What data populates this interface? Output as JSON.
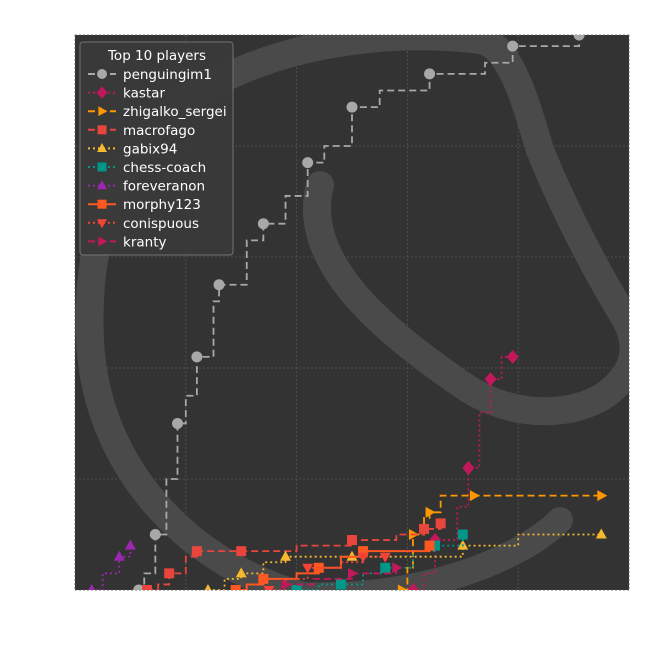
{
  "chart_data": {
    "type": "line",
    "x_axis": {
      "range": [
        0,
        100
      ],
      "ticks": [
        0,
        20,
        40,
        60,
        80,
        100
      ],
      "tick_labels_visible": false,
      "label": ""
    },
    "y_axis": {
      "range": [
        0,
        100
      ],
      "ticks": [
        0,
        20,
        40,
        60,
        80,
        100
      ],
      "tick_labels_visible": false,
      "label": ""
    },
    "grid": true,
    "background": "#333333",
    "watermark": "knight-icon",
    "legend": {
      "title": "Top 10 players",
      "placement": "top-left"
    },
    "series": [
      {
        "name": "penguingim1",
        "color": "#a8a8a8",
        "linestyle": "dashed",
        "marker": "circle",
        "points": [
          [
            11.5,
            0
          ],
          [
            12.5,
            3
          ],
          [
            14.5,
            10
          ],
          [
            16.5,
            20
          ],
          [
            18.5,
            30
          ],
          [
            20,
            35
          ],
          [
            22,
            42
          ],
          [
            25,
            52
          ],
          [
            26,
            55
          ],
          [
            31,
            63
          ],
          [
            34,
            66
          ],
          [
            38,
            71
          ],
          [
            42,
            77
          ],
          [
            45,
            80
          ],
          [
            50,
            87
          ],
          [
            55,
            90
          ],
          [
            64,
            93
          ],
          [
            74,
            95
          ],
          [
            79,
            98
          ],
          [
            90,
            98
          ],
          [
            91,
            100
          ]
        ]
      },
      {
        "name": "kastar",
        "color": "#c2185b",
        "linestyle": "dotted",
        "marker": "diamond",
        "points": [
          [
            61,
            0
          ],
          [
            63,
            3
          ],
          [
            65,
            9
          ],
          [
            69,
            15
          ],
          [
            71,
            22
          ],
          [
            73,
            32
          ],
          [
            75,
            38
          ],
          [
            77,
            42
          ],
          [
            79,
            42
          ]
        ]
      },
      {
        "name": "zhigalko_sergei",
        "color": "#ff9800",
        "linestyle": "dashed",
        "marker": "triangle-right",
        "points": [
          [
            59,
            0
          ],
          [
            60,
            4
          ],
          [
            61,
            10
          ],
          [
            63,
            13
          ],
          [
            64,
            14
          ],
          [
            66,
            17
          ],
          [
            72,
            17
          ],
          [
            82,
            17
          ],
          [
            95,
            17
          ]
        ]
      },
      {
        "name": "macrofago",
        "color": "#e8453c",
        "linestyle": "dashed",
        "marker": "square",
        "points": [
          [
            13,
            0
          ],
          [
            15,
            1
          ],
          [
            17,
            3
          ],
          [
            20,
            6
          ],
          [
            22,
            7
          ],
          [
            25,
            7
          ],
          [
            30,
            7
          ],
          [
            40,
            8
          ],
          [
            50,
            9
          ],
          [
            58,
            10
          ],
          [
            63,
            11
          ],
          [
            66,
            12
          ]
        ]
      },
      {
        "name": "gabix94",
        "color": "#f5b82e",
        "linestyle": "dotted",
        "marker": "triangle-up",
        "points": [
          [
            24,
            0
          ],
          [
            27,
            2
          ],
          [
            30,
            3
          ],
          [
            34,
            5
          ],
          [
            38,
            6
          ],
          [
            43,
            6
          ],
          [
            50,
            6
          ],
          [
            58,
            6
          ],
          [
            70,
            8
          ],
          [
            80,
            10
          ],
          [
            95,
            10
          ]
        ]
      },
      {
        "name": "chess-coach",
        "color": "#009688",
        "linestyle": "dotted",
        "marker": "square",
        "points": [
          [
            40,
            0
          ],
          [
            44,
            1
          ],
          [
            48,
            1
          ],
          [
            52,
            3
          ],
          [
            56,
            4
          ],
          [
            61,
            7
          ],
          [
            65,
            8
          ],
          [
            70,
            10
          ]
        ]
      },
      {
        "name": "foreveranon",
        "color": "#9c27b0",
        "linestyle": "dotted",
        "marker": "triangle-up",
        "points": [
          [
            3,
            0
          ],
          [
            5,
            3
          ],
          [
            8,
            6
          ],
          [
            10,
            8
          ]
        ]
      },
      {
        "name": "morphy123",
        "color": "#ff5722",
        "linestyle": "solid",
        "marker": "square",
        "points": [
          [
            29,
            0
          ],
          [
            31,
            1
          ],
          [
            34,
            2
          ],
          [
            40,
            3
          ],
          [
            44,
            4
          ],
          [
            48,
            6
          ],
          [
            52,
            7
          ],
          [
            60,
            7
          ],
          [
            64,
            8
          ]
        ]
      },
      {
        "name": "conispuous",
        "color": "#f44336",
        "linestyle": "dotted",
        "marker": "triangle-down",
        "points": [
          [
            35,
            0
          ],
          [
            38,
            2
          ],
          [
            42,
            4
          ],
          [
            48,
            5
          ],
          [
            52,
            6
          ],
          [
            56,
            6
          ]
        ]
      },
      {
        "name": "kranty",
        "color": "#c2185b",
        "linestyle": "dashed",
        "marker": "triangle-right",
        "points": [
          [
            38,
            1
          ],
          [
            43,
            2
          ],
          [
            50,
            3
          ],
          [
            56,
            3
          ],
          [
            58,
            4
          ]
        ]
      }
    ]
  }
}
